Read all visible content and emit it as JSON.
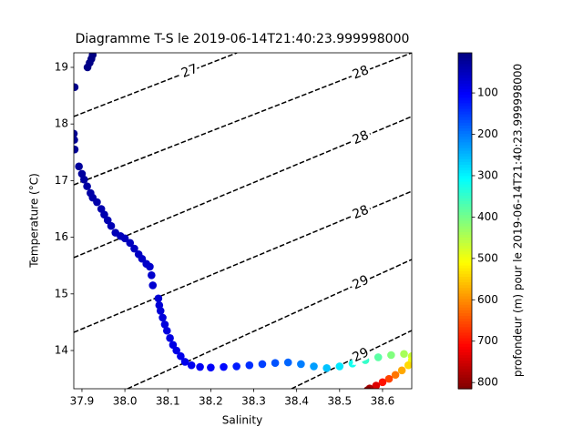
{
  "chart_data": {
    "type": "scatter",
    "title": "Diagramme T-S le 2019-06-14T21:40:23.999998000",
    "x_label": "Salinity",
    "y_label": "Temperature (°C)",
    "x": [
      37.925,
      37.922,
      37.918,
      37.913,
      37.883,
      37.881,
      37.882,
      37.883,
      37.893,
      37.9,
      37.905,
      37.912,
      37.92,
      37.925,
      37.935,
      37.945,
      37.952,
      37.96,
      37.968,
      37.978,
      37.99,
      38.0,
      38.012,
      38.022,
      38.032,
      38.04,
      38.05,
      38.058,
      38.062,
      38.065,
      38.078,
      38.08,
      38.083,
      38.088,
      38.093,
      38.098,
      38.105,
      38.112,
      38.12,
      38.13,
      38.14,
      38.155,
      38.175,
      38.2,
      38.23,
      38.26,
      38.29,
      38.32,
      38.35,
      38.38,
      38.41,
      38.44,
      38.47,
      38.5,
      38.53,
      38.56,
      38.59,
      38.62,
      38.65,
      38.668,
      38.668,
      38.66,
      38.645,
      38.63,
      38.615,
      38.6,
      38.585,
      38.57,
      38.565
    ],
    "series": [
      {
        "name": "profondeur (m) pour le 2019-06-14T21:40:23.999998000",
        "values": [
          19.22,
          19.15,
          19.08,
          19.0,
          18.65,
          17.83,
          17.72,
          17.55,
          17.25,
          17.12,
          17.02,
          16.9,
          16.78,
          16.7,
          16.62,
          16.5,
          16.4,
          16.3,
          16.2,
          16.08,
          16.02,
          15.98,
          15.9,
          15.8,
          15.7,
          15.62,
          15.53,
          15.48,
          15.33,
          15.15,
          14.92,
          14.8,
          14.7,
          14.58,
          14.46,
          14.35,
          14.22,
          14.1,
          14.0,
          13.9,
          13.8,
          13.74,
          13.71,
          13.7,
          13.71,
          13.72,
          13.74,
          13.76,
          13.78,
          13.79,
          13.76,
          13.72,
          13.69,
          13.72,
          13.77,
          13.83,
          13.88,
          13.92,
          13.94,
          13.9,
          13.82,
          13.74,
          13.65,
          13.57,
          13.5,
          13.44,
          13.38,
          13.33,
          13.3
        ],
        "color_values": [
          4,
          6,
          8,
          10,
          14,
          18,
          20,
          22,
          25,
          27,
          29,
          31,
          33,
          35,
          37,
          39,
          41,
          43,
          45,
          47,
          49,
          51,
          53,
          55,
          57,
          59,
          61,
          63,
          65,
          67,
          69,
          71,
          73,
          75,
          77,
          79,
          81,
          83,
          85,
          87,
          89,
          92,
          96,
          100,
          110,
          125,
          140,
          155,
          170,
          185,
          205,
          230,
          260,
          290,
          320,
          350,
          380,
          410,
          440,
          470,
          500,
          540,
          580,
          620,
          660,
          700,
          740,
          780,
          810
        ]
      }
    ],
    "colormap": "jet",
    "clim": [
      3,
      815
    ],
    "colorbar_inverted": true,
    "colorbar_ticks": [
      100,
      200,
      300,
      400,
      500,
      600,
      700,
      800
    ],
    "xlim": [
      37.881,
      38.668
    ],
    "ylim": [
      13.325,
      19.257
    ],
    "xticks": [
      37.9,
      {
        "value": 38.0,
        "label": "38.0"
      },
      38.1,
      38.2,
      38.3,
      38.4,
      38.5,
      38.6
    ],
    "yticks": [
      14,
      15,
      16,
      17,
      18,
      19
    ],
    "contours": [
      {
        "label": "27",
        "x": [
          37.881,
          38.261
        ],
        "y": [
          18.132,
          19.257
        ]
      },
      {
        "label": "28",
        "x": [
          37.881,
          38.668
        ],
        "y": [
          16.926,
          19.257
        ]
      },
      {
        "label": "28",
        "x": [
          37.881,
          38.668
        ],
        "y": [
          15.64,
          18.132
        ]
      },
      {
        "label": "28",
        "x": [
          37.881,
          38.668
        ],
        "y": [
          14.321,
          16.813
        ]
      },
      {
        "label": "29",
        "x": [
          38.006,
          38.668
        ],
        "y": [
          13.325,
          15.607
        ]
      },
      {
        "label": "29",
        "x": [
          38.388,
          38.668
        ],
        "y": [
          13.325,
          14.354
        ]
      }
    ],
    "contour_color": "#000000",
    "contour_style": "dashed"
  }
}
